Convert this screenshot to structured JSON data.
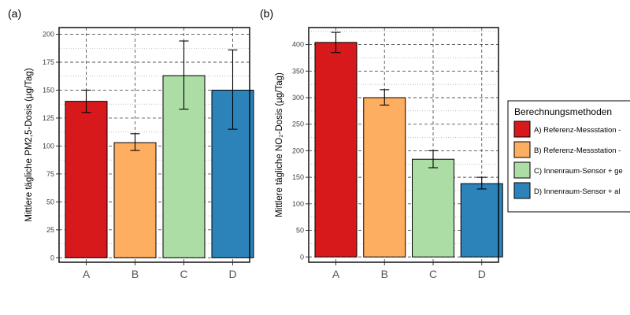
{
  "colors": {
    "A": "#d7191c",
    "B": "#fdae61",
    "C": "#abdda4",
    "D": "#2b83ba"
  },
  "legend": {
    "title": "Berechnungsmethoden",
    "items": [
      "A) Referenz-Messstation -",
      "B) Referenz-Messstation -",
      "C) Innenraum-Sensor + ge",
      "D) Innenraum-Sensor + al"
    ]
  },
  "chart_data": [
    {
      "type": "bar",
      "panel_label": "(a)",
      "ylabel": "Mittlere tägliche PM2,5-Dosis (µg/Tag)",
      "categories": [
        "A",
        "B",
        "C",
        "D"
      ],
      "values": [
        140,
        103,
        163,
        150
      ],
      "error_low": [
        130,
        96,
        133,
        115
      ],
      "error_high": [
        150,
        111,
        194,
        186
      ],
      "ylim": [
        -4,
        206
      ],
      "yticks": [
        0,
        25,
        50,
        75,
        100,
        125,
        150,
        175,
        200
      ],
      "grid": true,
      "legend": "none"
    },
    {
      "type": "bar",
      "panel_label": "(b)",
      "ylabel": "Mittlere tägliche NO₂-Dosis (µg/Tag)",
      "categories": [
        "A",
        "B",
        "C",
        "D"
      ],
      "values": [
        404,
        300,
        184,
        138
      ],
      "error_low": [
        385,
        286,
        168,
        128
      ],
      "error_high": [
        423,
        315,
        200,
        150
      ],
      "ylim": [
        -10,
        432
      ],
      "yticks": [
        0,
        50,
        100,
        150,
        200,
        250,
        300,
        350,
        400
      ],
      "grid": true,
      "legend": "right"
    }
  ]
}
